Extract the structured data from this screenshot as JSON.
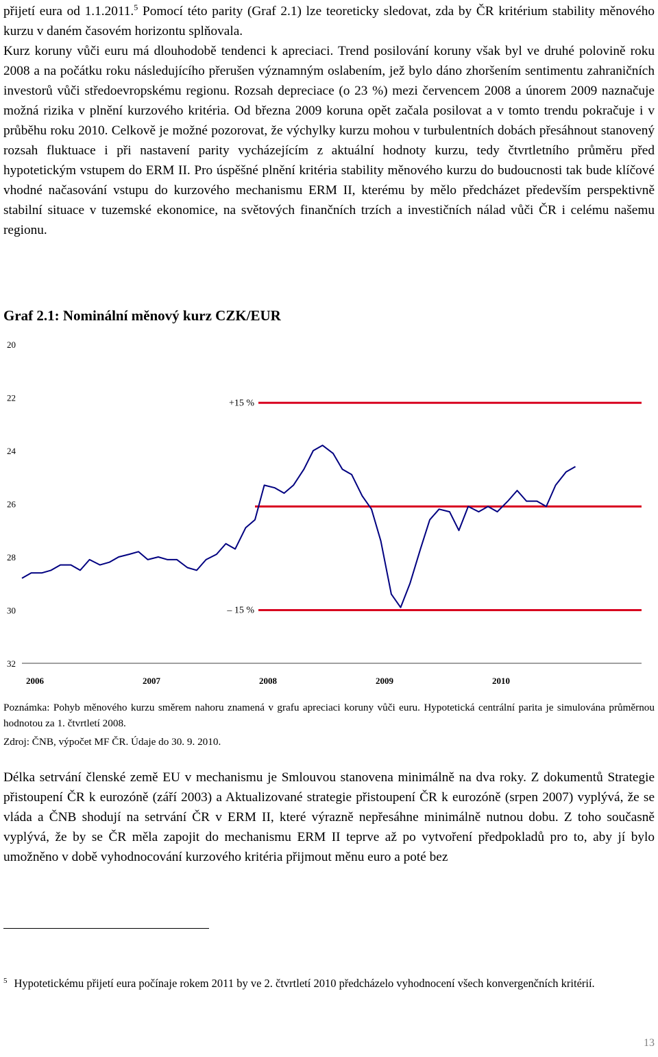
{
  "paragraphs": {
    "p1_a": "přijetí eura od 1.1.2011.",
    "p1_sup": "5",
    "p1_b": " Pomocí této parity (Graf 2.1) lze teoreticky sledovat, zda by ČR kritérium stability měnového kurzu v daném časovém horizontu splňovala.",
    "p2": "Kurz koruny vůči euru má dlouhodobě tendenci k apreciaci. Trend posilování koruny však byl ve druhé polovině roku 2008 a na počátku roku následujícího přerušen významným oslabením, jež bylo dáno zhoršením sentimentu zahraničních investorů vůči středoevropskému regionu. Rozsah depreciace (o 23 %) mezi červencem 2008 a únorem 2009 naznačuje možná rizika v plnění kurzového kritéria. Od března 2009 koruna opět začala posilovat a v tomto trendu pokračuje i v průběhu roku 2010. Celkově je možné pozorovat, že výchylky kurzu mohou v turbulentních dobách přesáhnout stanovený rozsah fluktuace i při nastavení parity vycházejícím z aktuální hodnoty kurzu, tedy čtvrtletního průměru před hypotetickým vstupem do ERM II. Pro úspěšné plnění kritéria stability měnového kurzu do budoucnosti tak bude klíčové vhodné načasování vstupu do kurzového mechanismu ERM II, kterému by mělo předcházet především perspektivně stabilní situace v tuzemské ekonomice, na světových finančních trzích a investičních nálad vůči ČR i celému našemu regionu.",
    "p3": "Délka setrvání členské země EU v mechanismu je Smlouvou stanovena minimálně na dva roky. Z dokumentů Strategie přistoupení ČR k eurozóně (září 2003) a Aktualizované strategie přistoupení ČR k eurozóně (srpen 2007) vyplývá, že se vláda a ČNB shodují na setrvání ČR v ERM II, které výrazně nepřesáhne minimálně nutnou dobu. Z toho současně vyplývá, že by se ČR měla zapojit do mechanismu ERM II teprve až po vytvoření předpokladů pro to, aby jí bylo umožněno v době vyhodnocování kurzového kritéria přijmout měnu euro a poté bez"
  },
  "figure": {
    "caption": "Graf 2.1: Nominální měnový kurz CZK/EUR",
    "note": "Poznámka: Pohyb měnového kurzu směrem nahoru znamená v grafu apreciaci koruny vůči euru. Hypotetická centrální parita je simulována průměrnou hodnotou za 1. čtvrtletí 2008.",
    "source": "Zdroj: ČNB, výpočet MF ČR. Údaje do 30. 9. 2010."
  },
  "chart_data": {
    "type": "line",
    "title": "Graf 2.1: Nominální měnový kurz CZK/EUR",
    "xlabel": "",
    "ylabel": "",
    "y_inverted": true,
    "ylim": [
      20,
      32
    ],
    "yticks": [
      "20",
      "22",
      "24",
      "26",
      "28",
      "30",
      "32"
    ],
    "xlim": [
      2006,
      2011
    ],
    "xticks": [
      "2006",
      "2007",
      "2008",
      "2009",
      "2010"
    ],
    "grid": false,
    "colors": {
      "series": "#000080",
      "bands": "#d8001e"
    },
    "series": [
      {
        "x": [
          2006.0,
          2006.08,
          2006.17,
          2006.25,
          2006.33,
          2006.42,
          2006.5,
          2006.58,
          2006.67,
          2006.75,
          2006.83,
          2006.92,
          2007.0,
          2007.08,
          2007.17,
          2007.25,
          2007.33,
          2007.42,
          2007.5,
          2007.58,
          2007.67,
          2007.75,
          2007.83,
          2007.92,
          2008.0,
          2008.08,
          2008.17,
          2008.25,
          2008.33,
          2008.42,
          2008.5,
          2008.58,
          2008.67,
          2008.75,
          2008.83,
          2008.92,
          2009.0,
          2009.08,
          2009.17,
          2009.25,
          2009.33,
          2009.42,
          2009.5,
          2009.58,
          2009.67,
          2009.75,
          2009.83,
          2009.92,
          2010.0,
          2010.08,
          2010.17,
          2010.25,
          2010.33,
          2010.42,
          2010.5,
          2010.58,
          2010.67,
          2010.75
        ],
        "y": [
          28.8,
          28.6,
          28.6,
          28.5,
          28.3,
          28.3,
          28.5,
          28.1,
          28.3,
          28.2,
          28.0,
          27.9,
          27.8,
          28.1,
          28.0,
          28.1,
          28.1,
          28.4,
          28.5,
          28.1,
          27.9,
          27.5,
          27.7,
          26.9,
          26.6,
          25.3,
          25.4,
          25.6,
          25.3,
          24.7,
          24.0,
          23.8,
          24.1,
          24.7,
          24.9,
          25.7,
          26.2,
          27.4,
          29.4,
          29.9,
          29.0,
          27.7,
          26.6,
          26.2,
          26.3,
          27.0,
          26.1,
          26.3,
          26.1,
          26.3,
          25.9,
          25.5,
          25.9,
          25.9,
          26.1,
          25.3,
          24.8,
          24.6
        ]
      }
    ],
    "bands": [
      {
        "label": "+15 %",
        "value": 22.2,
        "x_from": 2008.0
      },
      {
        "label": "",
        "value": 26.1,
        "x_from": 2008.0
      },
      {
        "label": "– 15 %",
        "value": 30.0,
        "x_from": 2008.0
      }
    ]
  },
  "footnote": {
    "mark": "5",
    "text": "Hypotetickému přijetí eura počínaje rokem 2011 by ve 2. čtvrtletí 2010 předcházelo vyhodnocení všech konvergenčních kritérií."
  },
  "page_number": "13"
}
